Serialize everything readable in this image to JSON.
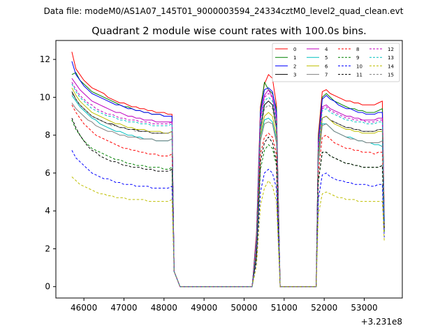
{
  "header": {
    "suptitle": "Data file: modeM0/AS1A07_145T01_9000003594_24334cztM0_level2_quad_clean.evt"
  },
  "chart_data": {
    "type": "line",
    "title": "Quadrant 2 module wise count rates with 100.0s bins.",
    "xlabel": "",
    "ylabel": "",
    "x_offset_label": "+3.231e8",
    "xlim": [
      45300,
      53950
    ],
    "ylim": [
      -0.6,
      13.0
    ],
    "xticks": [
      46000,
      47000,
      48000,
      49000,
      50000,
      51000,
      52000,
      53000
    ],
    "xtick_labels": [
      "46000",
      "47000",
      "48000",
      "49000",
      "50000",
      "51000",
      "52000",
      "53000"
    ],
    "yticks": [
      0,
      2,
      4,
      6,
      8,
      10,
      12
    ],
    "ytick_labels": [
      "0",
      "2",
      "4",
      "6",
      "8",
      "10",
      "12"
    ],
    "grid": false,
    "legend_position": "upper right",
    "legend_columns": 4,
    "segments": [
      {
        "x_start": 45700,
        "x_end": 48200,
        "x_last": 48252
      },
      {
        "x_start": 50308,
        "x_end": 50808,
        "x_last": 50900
      },
      {
        "x_start": 51852,
        "x_end": 53452,
        "x_last": 53500
      }
    ],
    "zero_interval": [
      48400,
      50200
    ],
    "series": [
      {
        "name": "0",
        "color": "#ff0000",
        "dash": false,
        "seg1": [
          12.4,
          11.5,
          11.2,
          10.9,
          10.7,
          10.5,
          10.4,
          10.3,
          10.2,
          10.0,
          9.9,
          9.8,
          9.7,
          9.7,
          9.6,
          9.5,
          9.5,
          9.4,
          9.4,
          9.3,
          9.3,
          9.2,
          9.2,
          9.2,
          9.1,
          9.1
        ],
        "seg2": [
          2.8,
          9.5,
          10.7,
          11.2,
          11.0,
          9.6
        ],
        "seg3": [
          8.0,
          10.3,
          10.4,
          10.2,
          10.1,
          10.0,
          9.9,
          9.8,
          9.8,
          9.7,
          9.7,
          9.6,
          9.6,
          9.6,
          9.6,
          9.7,
          9.8
        ],
        "end": 3.9
      },
      {
        "name": "1",
        "color": "#008000",
        "dash": false,
        "seg1": [
          11.2,
          11.3,
          10.9,
          10.7,
          10.5,
          10.3,
          10.2,
          10.1,
          10.0,
          9.9,
          9.8,
          9.7,
          9.6,
          9.5,
          9.5,
          9.4,
          9.3,
          9.3,
          9.2,
          9.2,
          9.1,
          9.1,
          9.1,
          9.0,
          9.0,
          9.0
        ],
        "seg2": [
          2.6,
          9.3,
          10.8,
          10.4,
          10.2,
          9.4
        ],
        "seg3": [
          7.8,
          10.0,
          10.2,
          10.0,
          9.8,
          9.7,
          9.6,
          9.5,
          9.4,
          9.4,
          9.3,
          9.3,
          9.2,
          9.2,
          9.2,
          9.3,
          9.4
        ],
        "end": 3.5
      },
      {
        "name": "2",
        "color": "#0000ff",
        "dash": false,
        "seg1": [
          11.9,
          11.2,
          10.9,
          10.6,
          10.4,
          10.2,
          10.1,
          10.0,
          9.9,
          9.8,
          9.7,
          9.6,
          9.6,
          9.5,
          9.4,
          9.4,
          9.3,
          9.3,
          9.2,
          9.2,
          9.1,
          9.1,
          9.1,
          9.0,
          9.0,
          9.0
        ],
        "seg2": [
          2.5,
          9.2,
          10.4,
          10.5,
          10.3,
          9.2
        ],
        "seg3": [
          7.6,
          9.9,
          10.1,
          9.9,
          9.8,
          9.6,
          9.5,
          9.4,
          9.4,
          9.3,
          9.2,
          9.2,
          9.1,
          9.1,
          9.1,
          9.2,
          9.2
        ],
        "end": 3.4
      },
      {
        "name": "3",
        "color": "#000000",
        "dash": false,
        "seg1": [
          10.3,
          9.9,
          9.6,
          9.4,
          9.2,
          9.0,
          8.9,
          8.8,
          8.7,
          8.6,
          8.6,
          8.5,
          8.4,
          8.4,
          8.3,
          8.3,
          8.3,
          8.2,
          8.2,
          8.2,
          8.1,
          8.1,
          8.1,
          8.1,
          8.1,
          8.2
        ],
        "seg2": [
          2.2,
          8.3,
          9.6,
          9.8,
          9.6,
          8.4
        ],
        "seg3": [
          7.0,
          8.9,
          9.0,
          8.8,
          8.7,
          8.6,
          8.5,
          8.4,
          8.4,
          8.3,
          8.3,
          8.2,
          8.2,
          8.2,
          8.2,
          8.3,
          8.3
        ],
        "end": 3.3
      },
      {
        "name": "4",
        "color": "#bf00bf",
        "dash": false,
        "seg1": [
          11.0,
          10.7,
          10.4,
          10.2,
          10.0,
          9.8,
          9.7,
          9.6,
          9.5,
          9.4,
          9.3,
          9.2,
          9.2,
          9.1,
          9.0,
          9.0,
          8.9,
          8.9,
          8.8,
          8.8,
          8.8,
          8.7,
          8.7,
          8.7,
          8.7,
          8.7
        ],
        "seg2": [
          2.4,
          8.9,
          10.1,
          10.4,
          10.0,
          8.9
        ],
        "seg3": [
          7.5,
          9.5,
          9.6,
          9.4,
          9.3,
          9.2,
          9.1,
          9.0,
          9.0,
          8.9,
          8.9,
          8.8,
          8.8,
          8.8,
          8.8,
          8.9,
          8.9
        ],
        "end": 3.6
      },
      {
        "name": "5",
        "color": "#00bfbf",
        "dash": false,
        "seg1": [
          10.1,
          9.8,
          9.5,
          9.3,
          9.1,
          8.9,
          8.8,
          8.6,
          8.5,
          8.4,
          8.3,
          8.2,
          8.2,
          8.1,
          8.0,
          8.0,
          7.9,
          7.9,
          7.8,
          7.8,
          7.8,
          7.7,
          7.7,
          7.7,
          7.7,
          7.8
        ],
        "seg2": [
          2.0,
          7.9,
          8.8,
          8.9,
          8.7,
          7.8
        ],
        "seg3": [
          6.5,
          8.6,
          8.6,
          8.4,
          8.2,
          8.1,
          8.0,
          7.9,
          7.9,
          7.8,
          7.7,
          7.7,
          7.6,
          7.6,
          7.5,
          7.5,
          7.4
        ],
        "end": 3.1
      },
      {
        "name": "6",
        "color": "#bfbf00",
        "dash": false,
        "seg1": [
          10.5,
          10.1,
          9.8,
          9.6,
          9.4,
          9.2,
          9.1,
          9.0,
          8.9,
          8.8,
          8.7,
          8.6,
          8.6,
          8.5,
          8.4,
          8.4,
          8.3,
          8.3,
          8.3,
          8.2,
          8.2,
          8.2,
          8.2,
          8.1,
          8.1,
          8.2
        ],
        "seg2": [
          2.2,
          8.0,
          9.0,
          9.2,
          9.0,
          8.0
        ],
        "seg3": [
          6.8,
          8.9,
          9.0,
          8.8,
          8.6,
          8.5,
          8.4,
          8.3,
          8.3,
          8.2,
          8.2,
          8.1,
          8.1,
          8.1,
          8.1,
          8.2,
          8.2
        ],
        "end": 3.2
      },
      {
        "name": "7",
        "color": "#808080",
        "dash": false,
        "seg1": [
          9.7,
          9.4,
          9.2,
          9.0,
          8.8,
          8.7,
          8.5,
          8.4,
          8.3,
          8.2,
          8.2,
          8.1,
          8.0,
          8.0,
          7.9,
          7.9,
          7.9,
          7.8,
          7.8,
          7.8,
          7.8,
          7.7,
          7.7,
          7.7,
          7.7,
          7.8
        ],
        "seg2": [
          2.0,
          7.7,
          8.6,
          8.7,
          8.6,
          7.6
        ],
        "seg3": [
          6.6,
          8.5,
          8.6,
          8.4,
          8.2,
          8.1,
          8.0,
          7.9,
          7.8,
          7.8,
          7.7,
          7.7,
          7.6,
          7.6,
          7.6,
          7.6,
          7.7
        ],
        "end": 3.0
      },
      {
        "name": "8",
        "color": "#ff0000",
        "dash": true,
        "seg1": [
          9.6,
          9.2,
          8.9,
          8.6,
          8.4,
          8.2,
          8.0,
          7.9,
          7.8,
          7.7,
          7.6,
          7.5,
          7.4,
          7.3,
          7.3,
          7.2,
          7.2,
          7.1,
          7.1,
          7.0,
          7.0,
          7.0,
          6.9,
          6.9,
          6.9,
          7.0
        ],
        "seg2": [
          1.8,
          7.0,
          7.9,
          8.1,
          7.9,
          7.0
        ],
        "seg3": [
          6.0,
          7.9,
          8.0,
          7.8,
          7.6,
          7.5,
          7.4,
          7.3,
          7.3,
          7.2,
          7.2,
          7.1,
          7.1,
          7.1,
          7.0,
          7.1,
          7.1
        ],
        "end": 3.0
      },
      {
        "name": "9",
        "color": "#008000",
        "dash": true,
        "seg1": [
          8.8,
          8.3,
          8.0,
          7.7,
          7.5,
          7.3,
          7.2,
          7.1,
          7.0,
          6.9,
          6.8,
          6.7,
          6.7,
          6.6,
          6.5,
          6.5,
          6.4,
          6.4,
          6.4,
          6.3,
          6.3,
          6.3,
          6.3,
          6.2,
          6.2,
          6.3
        ],
        "seg2": [
          1.6,
          6.2,
          7.2,
          7.5,
          7.3,
          6.4
        ],
        "seg3": [
          5.5,
          7.1,
          7.1,
          6.9,
          6.8,
          6.7,
          6.6,
          6.5,
          6.5,
          6.4,
          6.4,
          6.3,
          6.3,
          6.3,
          6.3,
          6.3,
          6.4
        ],
        "end": 2.9
      },
      {
        "name": "10",
        "color": "#0000ff",
        "dash": true,
        "seg1": [
          7.2,
          6.8,
          6.6,
          6.4,
          6.2,
          6.0,
          5.9,
          5.8,
          5.7,
          5.7,
          5.6,
          5.5,
          5.5,
          5.4,
          5.4,
          5.4,
          5.3,
          5.3,
          5.3,
          5.3,
          5.2,
          5.2,
          5.2,
          5.2,
          5.2,
          5.3
        ],
        "seg2": [
          1.3,
          5.0,
          6.0,
          6.2,
          6.0,
          5.2
        ],
        "seg3": [
          4.6,
          5.9,
          6.0,
          5.8,
          5.7,
          5.6,
          5.6,
          5.5,
          5.5,
          5.4,
          5.4,
          5.4,
          5.4,
          5.3,
          5.3,
          5.4,
          5.4
        ],
        "end": 2.6
      },
      {
        "name": "11",
        "color": "#000000",
        "dash": true,
        "seg1": [
          8.9,
          8.4,
          8.0,
          7.7,
          7.4,
          7.2,
          7.1,
          6.9,
          6.8,
          6.7,
          6.6,
          6.6,
          6.5,
          6.4,
          6.4,
          6.3,
          6.3,
          6.3,
          6.2,
          6.2,
          6.2,
          6.1,
          6.1,
          6.1,
          6.1,
          6.2
        ],
        "seg2": [
          1.6,
          6.6,
          7.6,
          7.9,
          7.6,
          6.6
        ],
        "seg3": [
          5.6,
          7.1,
          7.1,
          6.9,
          6.8,
          6.7,
          6.6,
          6.5,
          6.5,
          6.4,
          6.4,
          6.3,
          6.3,
          6.3,
          6.3,
          6.3,
          6.4
        ],
        "end": 3.0
      },
      {
        "name": "12",
        "color": "#bf00bf",
        "dash": true,
        "seg1": [
          10.8,
          10.4,
          10.1,
          9.9,
          9.7,
          9.6,
          9.4,
          9.3,
          9.2,
          9.1,
          9.1,
          9.0,
          8.9,
          8.9,
          8.8,
          8.8,
          8.8,
          8.7,
          8.7,
          8.7,
          8.6,
          8.6,
          8.6,
          8.6,
          8.6,
          8.7
        ],
        "seg2": [
          2.3,
          8.8,
          10.0,
          10.2,
          10.0,
          8.8
        ],
        "seg3": [
          7.4,
          9.4,
          9.5,
          9.3,
          9.2,
          9.1,
          9.0,
          8.9,
          8.9,
          8.8,
          8.8,
          8.8,
          8.7,
          8.7,
          8.7,
          8.8,
          8.8
        ],
        "end": 3.5
      },
      {
        "name": "13",
        "color": "#00bfbf",
        "dash": true,
        "seg1": [
          10.7,
          10.3,
          10.0,
          9.8,
          9.6,
          9.4,
          9.3,
          9.2,
          9.1,
          9.0,
          9.0,
          8.9,
          8.8,
          8.8,
          8.7,
          8.7,
          8.7,
          8.6,
          8.6,
          8.6,
          8.5,
          8.5,
          8.5,
          8.5,
          8.5,
          8.6
        ],
        "seg2": [
          2.3,
          8.6,
          9.8,
          10.0,
          9.8,
          8.7
        ],
        "seg3": [
          7.3,
          9.3,
          9.4,
          9.2,
          9.1,
          9.0,
          8.9,
          8.8,
          8.8,
          8.7,
          8.7,
          8.7,
          8.6,
          8.6,
          8.6,
          8.7,
          8.7
        ],
        "end": 3.4
      },
      {
        "name": "14",
        "color": "#bfbf00",
        "dash": true,
        "seg1": [
          5.8,
          5.6,
          5.4,
          5.3,
          5.2,
          5.1,
          5.0,
          4.9,
          4.9,
          4.8,
          4.8,
          4.7,
          4.7,
          4.7,
          4.6,
          4.6,
          4.6,
          4.6,
          4.6,
          4.5,
          4.5,
          4.5,
          4.5,
          4.5,
          4.5,
          4.6
        ],
        "seg2": [
          1.1,
          4.3,
          5.2,
          5.6,
          5.3,
          4.5
        ],
        "seg3": [
          3.8,
          4.9,
          5.0,
          4.9,
          4.8,
          4.7,
          4.7,
          4.6,
          4.6,
          4.6,
          4.5,
          4.5,
          4.5,
          4.5,
          4.5,
          4.5,
          4.5
        ],
        "end": 2.4
      },
      {
        "name": "15",
        "color": "#808080",
        "dash": true,
        "seg1": [
          10.2,
          9.9,
          9.6,
          9.4,
          9.2,
          9.0,
          8.9,
          8.8,
          8.7,
          8.6,
          8.5,
          8.5,
          8.4,
          8.4,
          8.3,
          8.3,
          8.2,
          8.2,
          8.2,
          8.2,
          8.1,
          8.1,
          8.1,
          8.1,
          8.1,
          8.2
        ],
        "seg2": [
          2.2,
          8.2,
          9.4,
          9.6,
          9.4,
          8.3
        ],
        "seg3": [
          7.0,
          8.9,
          9.0,
          8.8,
          8.7,
          8.6,
          8.5,
          8.4,
          8.4,
          8.3,
          8.3,
          8.2,
          8.2,
          8.2,
          8.2,
          8.3,
          8.3
        ],
        "end": 3.2
      }
    ]
  }
}
